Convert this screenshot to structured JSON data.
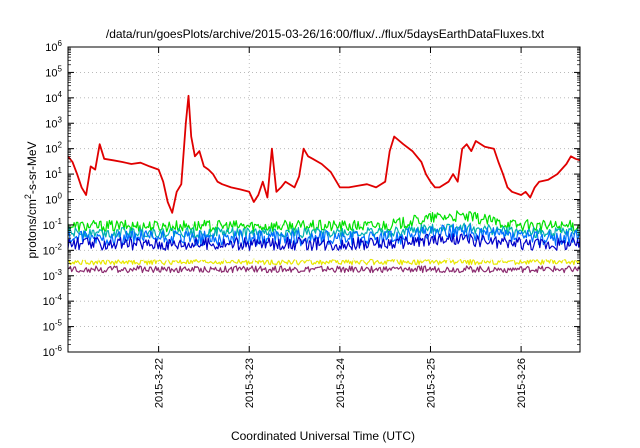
{
  "chart_data": {
    "type": "line",
    "title": "/data/run/goesPlots/archive/2015-03-26/16:00/flux/../flux/5daysEarthDataFluxes.txt",
    "xlabel": "Coordinated Universal Time (UTC)",
    "ylabel_parts": {
      "pre": "protons/cm",
      "sup": "2",
      "post": "-s-sr-MeV"
    },
    "x_range": [
      0.0,
      5.65
    ],
    "x_ticks": [
      {
        "x": 1.0,
        "label": "2015-3-22"
      },
      {
        "x": 2.0,
        "label": "2015-3-23"
      },
      {
        "x": 3.0,
        "label": "2015-3-24"
      },
      {
        "x": 4.0,
        "label": "2015-3-25"
      },
      {
        "x": 5.0,
        "label": "2015-3-26"
      }
    ],
    "y_scale": "log",
    "y_range_exp": [
      -6,
      6
    ],
    "y_ticks": [
      {
        "exp": 6,
        "base": "10",
        "sup": "6"
      },
      {
        "exp": 5,
        "base": "10",
        "sup": "5"
      },
      {
        "exp": 4,
        "base": "10",
        "sup": "4"
      },
      {
        "exp": 3,
        "base": "10",
        "sup": "3"
      },
      {
        "exp": 2,
        "base": "10",
        "sup": "2"
      },
      {
        "exp": 1,
        "base": "10",
        "sup": "1"
      },
      {
        "exp": 0,
        "base": "10",
        "sup": "0"
      },
      {
        "exp": -1,
        "base": "10",
        "sup": "-1"
      },
      {
        "exp": -2,
        "base": "10",
        "sup": "-2"
      },
      {
        "exp": -3,
        "base": "10",
        "sup": "-3"
      },
      {
        "exp": -4,
        "base": "10",
        "sup": "-4"
      },
      {
        "exp": -5,
        "base": "10",
        "sup": "-5"
      },
      {
        "exp": -6,
        "base": "10",
        "sup": "-6"
      }
    ],
    "grid": true,
    "series": [
      {
        "color": "#e00000",
        "points": [
          [
            0.0,
            50
          ],
          [
            0.05,
            30
          ],
          [
            0.1,
            10
          ],
          [
            0.15,
            3
          ],
          [
            0.2,
            1.5
          ],
          [
            0.25,
            20
          ],
          [
            0.3,
            15
          ],
          [
            0.35,
            150
          ],
          [
            0.4,
            40
          ],
          [
            0.5,
            35
          ],
          [
            0.6,
            30
          ],
          [
            0.7,
            25
          ],
          [
            0.8,
            28
          ],
          [
            0.9,
            20
          ],
          [
            1.0,
            15
          ],
          [
            1.05,
            5
          ],
          [
            1.1,
            0.8
          ],
          [
            1.15,
            0.3
          ],
          [
            1.2,
            2
          ],
          [
            1.25,
            4
          ],
          [
            1.3,
            1000
          ],
          [
            1.33,
            12000
          ],
          [
            1.36,
            300
          ],
          [
            1.4,
            50
          ],
          [
            1.45,
            80
          ],
          [
            1.5,
            20
          ],
          [
            1.55,
            15
          ],
          [
            1.6,
            10
          ],
          [
            1.65,
            5
          ],
          [
            1.7,
            4
          ],
          [
            1.8,
            3
          ],
          [
            1.9,
            2.5
          ],
          [
            2.0,
            2
          ],
          [
            2.05,
            0.8
          ],
          [
            2.1,
            1.5
          ],
          [
            2.15,
            5
          ],
          [
            2.2,
            1.2
          ],
          [
            2.25,
            100
          ],
          [
            2.3,
            2
          ],
          [
            2.35,
            3
          ],
          [
            2.4,
            5
          ],
          [
            2.5,
            3
          ],
          [
            2.55,
            8
          ],
          [
            2.6,
            100
          ],
          [
            2.65,
            50
          ],
          [
            2.7,
            40
          ],
          [
            2.8,
            25
          ],
          [
            2.9,
            12
          ],
          [
            3.0,
            3
          ],
          [
            3.1,
            3
          ],
          [
            3.2,
            3.5
          ],
          [
            3.3,
            4
          ],
          [
            3.4,
            3
          ],
          [
            3.5,
            5
          ],
          [
            3.55,
            80
          ],
          [
            3.6,
            300
          ],
          [
            3.7,
            150
          ],
          [
            3.8,
            80
          ],
          [
            3.9,
            30
          ],
          [
            3.95,
            10
          ],
          [
            4.0,
            5
          ],
          [
            4.05,
            3
          ],
          [
            4.1,
            3
          ],
          [
            4.2,
            5
          ],
          [
            4.25,
            10
          ],
          [
            4.3,
            5
          ],
          [
            4.35,
            100
          ],
          [
            4.4,
            150
          ],
          [
            4.45,
            80
          ],
          [
            4.5,
            200
          ],
          [
            4.6,
            120
          ],
          [
            4.7,
            100
          ],
          [
            4.75,
            30
          ],
          [
            4.8,
            10
          ],
          [
            4.85,
            3
          ],
          [
            4.9,
            2
          ],
          [
            5.0,
            1.5
          ],
          [
            5.05,
            2
          ],
          [
            5.1,
            1.2
          ],
          [
            5.15,
            3
          ],
          [
            5.2,
            5
          ],
          [
            5.3,
            6
          ],
          [
            5.4,
            10
          ],
          [
            5.5,
            25
          ],
          [
            5.55,
            50
          ],
          [
            5.6,
            40
          ],
          [
            5.65,
            35
          ]
        ]
      },
      {
        "color": "#00e000",
        "base": 0.09,
        "amp": 1.7,
        "bump": 2.4
      },
      {
        "color": "#00b0b0",
        "base": 0.05,
        "amp": 1.6,
        "bump": 1.6
      },
      {
        "color": "#0070ff",
        "base": 0.03,
        "amp": 2.0,
        "bump": 1.8
      },
      {
        "color": "#0000c8",
        "base": 0.018,
        "amp": 1.8,
        "bump": 1.5
      },
      {
        "color": "#e8e800",
        "base": 0.0035,
        "amp": 1.3,
        "bump": 1.0
      },
      {
        "color": "#ffffff",
        "base": 0.0045,
        "amp": 1.1,
        "bump": 1.0
      },
      {
        "color": "#8b2a6f",
        "base": 0.0018,
        "amp": 1.35,
        "bump": 1.0
      }
    ]
  }
}
